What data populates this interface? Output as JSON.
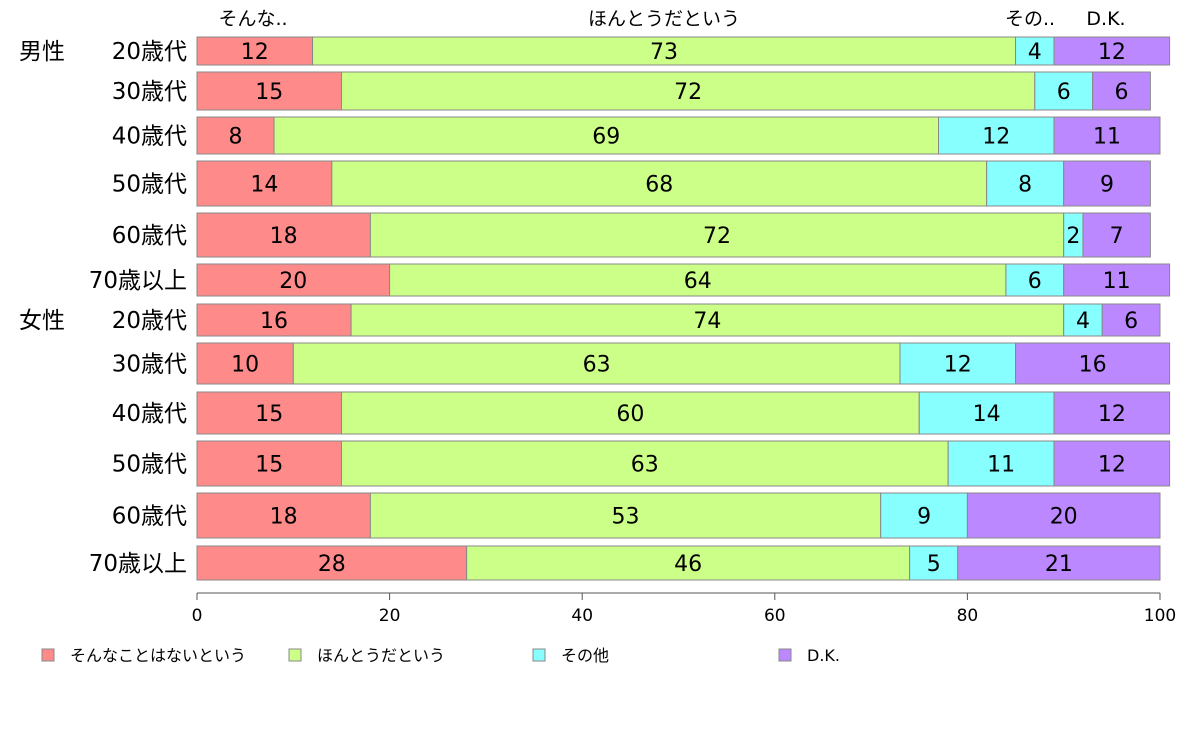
{
  "chart_data": {
    "type": "bar",
    "orientation": "horizontal",
    "stacked": true,
    "groups": [
      "男性",
      "女性"
    ],
    "categories": [
      "20歳代",
      "30歳代",
      "40歳代",
      "50歳代",
      "60歳代",
      "70歳以上",
      "20歳代",
      "30歳代",
      "40歳代",
      "50歳代",
      "60歳代",
      "70歳以上"
    ],
    "row_groups": [
      "男性",
      "",
      "",
      "",
      "",
      "",
      "女性",
      "",
      "",
      "",
      "",
      ""
    ],
    "series": [
      {
        "name": "そんなことはないという",
        "short_label": "そんな..",
        "color": "#ff8a8a",
        "values": [
          12,
          15,
          8,
          14,
          18,
          20,
          16,
          10,
          15,
          15,
          18,
          28
        ]
      },
      {
        "name": "ほんとうだという",
        "short_label": "ほんとうだという",
        "color": "#ccff88",
        "values": [
          73,
          72,
          69,
          68,
          72,
          64,
          74,
          63,
          60,
          63,
          53,
          46
        ]
      },
      {
        "name": "その他",
        "short_label": "その..",
        "color": "#88ffff",
        "values": [
          4,
          6,
          12,
          8,
          2,
          6,
          4,
          12,
          14,
          11,
          9,
          5
        ]
      },
      {
        "name": "D.K.",
        "short_label": "D.K.",
        "color": "#bb88ff",
        "values": [
          12,
          6,
          11,
          9,
          7,
          11,
          6,
          16,
          12,
          12,
          20,
          21
        ]
      }
    ],
    "xlim": [
      0,
      100
    ],
    "xticks": [
      0,
      20,
      40,
      60,
      80,
      100
    ],
    "legend_position": "bottom",
    "grid": false
  }
}
